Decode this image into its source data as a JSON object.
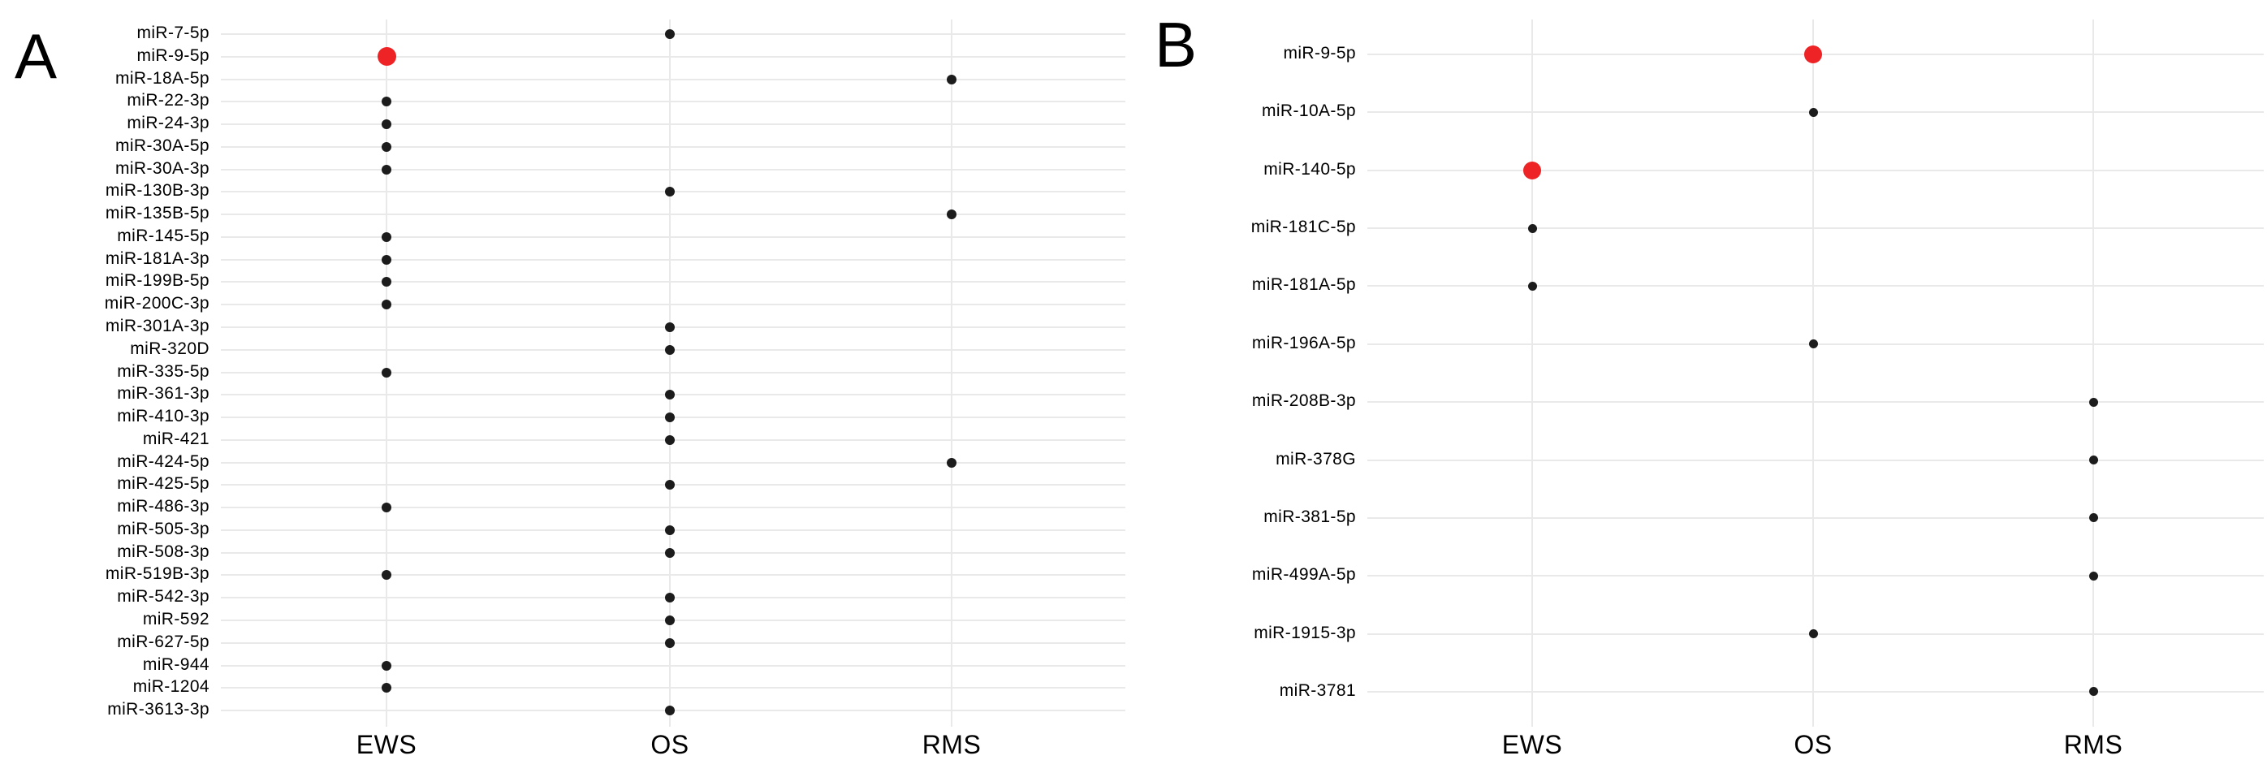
{
  "figure": {
    "panel_a_letter": "A",
    "panel_b_letter": "B"
  },
  "colors": {
    "highlight_red": "#ee2326",
    "dot_black": "#1c1c1c",
    "gridline": "#e9e9e9",
    "text": "#000000"
  },
  "chart_data": [
    {
      "id": "A",
      "type": "scatter",
      "title": "",
      "xlabel": "",
      "ylabel": "",
      "grid": true,
      "legend": false,
      "categories": [
        "EWS",
        "OS",
        "RMS"
      ],
      "rows": [
        "miR-7-5p",
        "miR-9-5p",
        "miR-18A-5p",
        "miR-22-3p",
        "miR-24-3p",
        "miR-30A-5p",
        "miR-30A-3p",
        "miR-130B-3p",
        "miR-135B-5p",
        "miR-145-5p",
        "miR-181A-3p",
        "miR-199B-5p",
        "miR-200C-3p",
        "miR-301A-3p",
        "miR-320D",
        "miR-335-5p",
        "miR-361-3p",
        "miR-410-3p",
        "miR-421",
        "miR-424-5p",
        "miR-425-5p",
        "miR-486-3p",
        "miR-505-3p",
        "miR-508-3p",
        "miR-519B-3p",
        "miR-542-3p",
        "miR-592",
        "miR-627-5p",
        "miR-944",
        "miR-1204",
        "miR-3613-3p"
      ],
      "points": [
        {
          "row": "miR-7-5p",
          "category": "OS",
          "highlighted": false
        },
        {
          "row": "miR-9-5p",
          "category": "EWS",
          "highlighted": true
        },
        {
          "row": "miR-18A-5p",
          "category": "RMS",
          "highlighted": false
        },
        {
          "row": "miR-22-3p",
          "category": "EWS",
          "highlighted": false
        },
        {
          "row": "miR-24-3p",
          "category": "EWS",
          "highlighted": false
        },
        {
          "row": "miR-30A-5p",
          "category": "EWS",
          "highlighted": false
        },
        {
          "row": "miR-30A-3p",
          "category": "EWS",
          "highlighted": false
        },
        {
          "row": "miR-130B-3p",
          "category": "OS",
          "highlighted": false
        },
        {
          "row": "miR-135B-5p",
          "category": "RMS",
          "highlighted": false
        },
        {
          "row": "miR-145-5p",
          "category": "EWS",
          "highlighted": false
        },
        {
          "row": "miR-181A-3p",
          "category": "EWS",
          "highlighted": false
        },
        {
          "row": "miR-199B-5p",
          "category": "EWS",
          "highlighted": false
        },
        {
          "row": "miR-200C-3p",
          "category": "EWS",
          "highlighted": false
        },
        {
          "row": "miR-301A-3p",
          "category": "OS",
          "highlighted": false
        },
        {
          "row": "miR-320D",
          "category": "OS",
          "highlighted": false
        },
        {
          "row": "miR-335-5p",
          "category": "EWS",
          "highlighted": false
        },
        {
          "row": "miR-361-3p",
          "category": "OS",
          "highlighted": false
        },
        {
          "row": "miR-410-3p",
          "category": "OS",
          "highlighted": false
        },
        {
          "row": "miR-421",
          "category": "OS",
          "highlighted": false
        },
        {
          "row": "miR-424-5p",
          "category": "RMS",
          "highlighted": false
        },
        {
          "row": "miR-425-5p",
          "category": "OS",
          "highlighted": false
        },
        {
          "row": "miR-486-3p",
          "category": "EWS",
          "highlighted": false
        },
        {
          "row": "miR-505-3p",
          "category": "OS",
          "highlighted": false
        },
        {
          "row": "miR-508-3p",
          "category": "OS",
          "highlighted": false
        },
        {
          "row": "miR-519B-3p",
          "category": "EWS",
          "highlighted": false
        },
        {
          "row": "miR-542-3p",
          "category": "OS",
          "highlighted": false
        },
        {
          "row": "miR-592",
          "category": "OS",
          "highlighted": false
        },
        {
          "row": "miR-627-5p",
          "category": "OS",
          "highlighted": false
        },
        {
          "row": "miR-944",
          "category": "EWS",
          "highlighted": false
        },
        {
          "row": "miR-1204",
          "category": "EWS",
          "highlighted": false
        },
        {
          "row": "miR-3613-3p",
          "category": "OS",
          "highlighted": false
        }
      ]
    },
    {
      "id": "B",
      "type": "scatter",
      "title": "",
      "xlabel": "",
      "ylabel": "",
      "grid": true,
      "legend": false,
      "categories": [
        "EWS",
        "OS",
        "RMS"
      ],
      "rows": [
        "miR-9-5p",
        "miR-10A-5p",
        "miR-140-5p",
        "miR-181C-5p",
        "miR-181A-5p",
        "miR-196A-5p",
        "miR-208B-3p",
        "miR-378G",
        "miR-381-5p",
        "miR-499A-5p",
        "miR-1915-3p",
        "miR-3781"
      ],
      "points": [
        {
          "row": "miR-9-5p",
          "category": "OS",
          "highlighted": true
        },
        {
          "row": "miR-10A-5p",
          "category": "OS",
          "highlighted": false
        },
        {
          "row": "miR-140-5p",
          "category": "EWS",
          "highlighted": true
        },
        {
          "row": "miR-181C-5p",
          "category": "EWS",
          "highlighted": false
        },
        {
          "row": "miR-181A-5p",
          "category": "EWS",
          "highlighted": false
        },
        {
          "row": "miR-196A-5p",
          "category": "OS",
          "highlighted": false
        },
        {
          "row": "miR-208B-3p",
          "category": "RMS",
          "highlighted": false
        },
        {
          "row": "miR-378G",
          "category": "RMS",
          "highlighted": false
        },
        {
          "row": "miR-381-5p",
          "category": "RMS",
          "highlighted": false
        },
        {
          "row": "miR-499A-5p",
          "category": "RMS",
          "highlighted": false
        },
        {
          "row": "miR-1915-3p",
          "category": "OS",
          "highlighted": false
        },
        {
          "row": "miR-3781",
          "category": "RMS",
          "highlighted": false
        }
      ]
    }
  ]
}
